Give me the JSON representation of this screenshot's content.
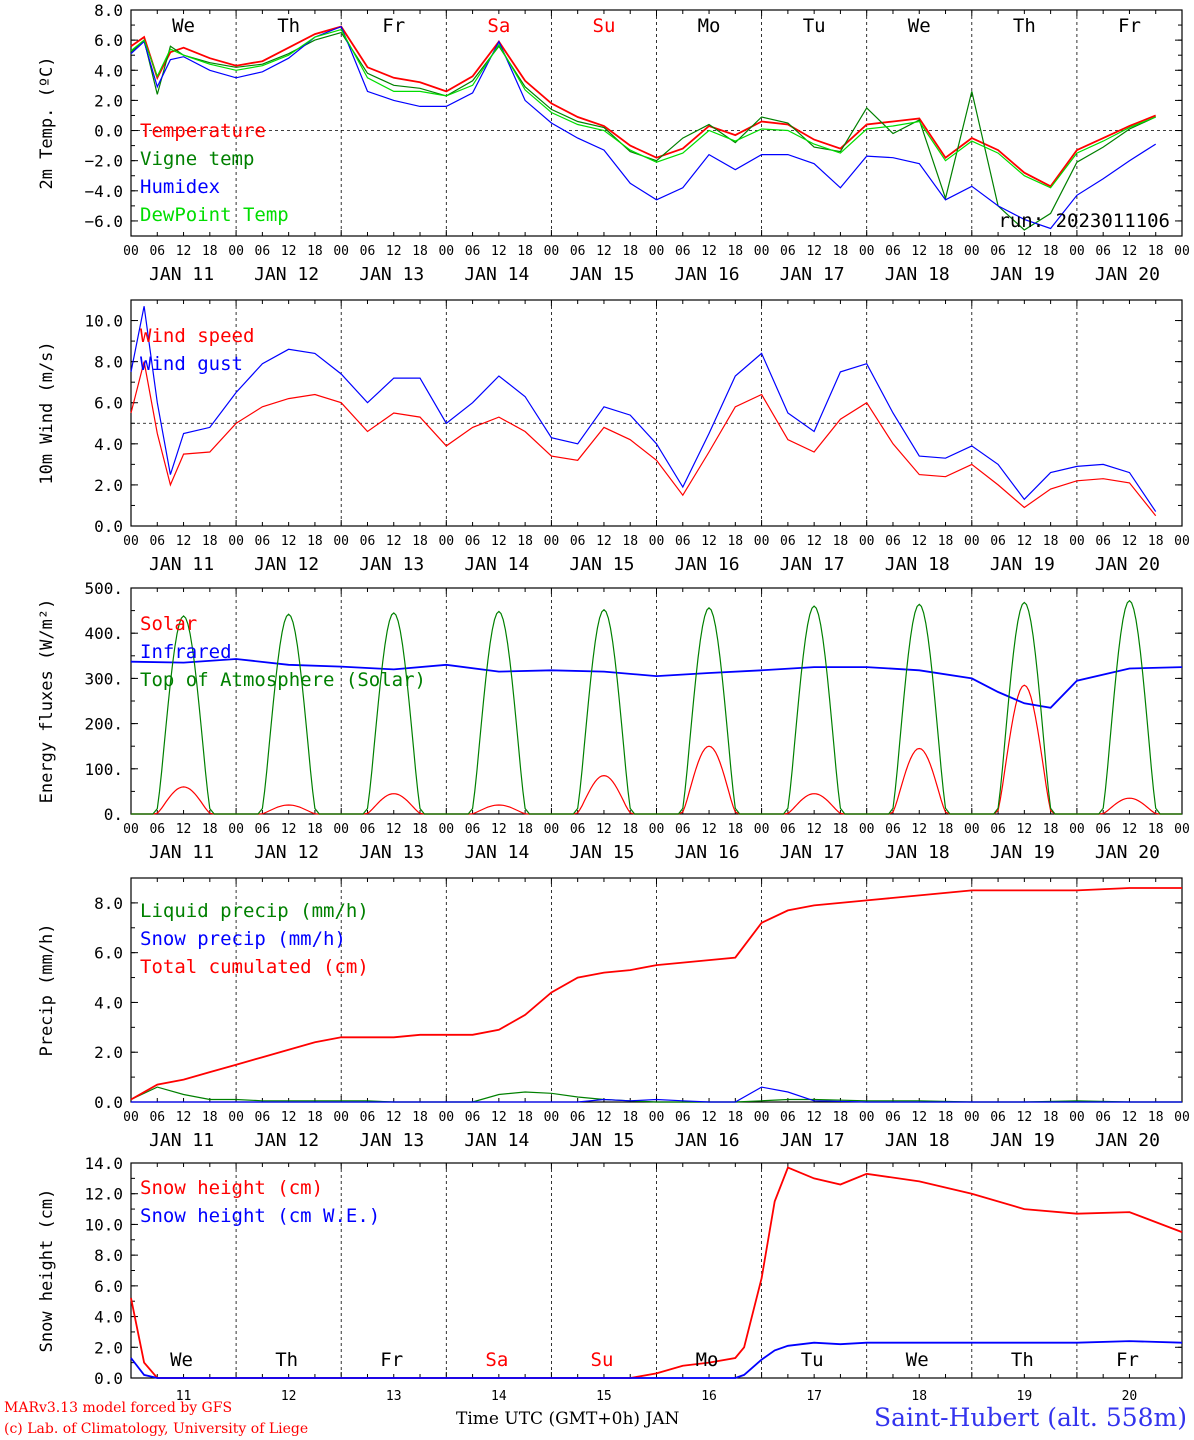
{
  "days": [
    "We",
    "Th",
    "Fr",
    "Sa",
    "Su",
    "Mo",
    "Tu",
    "We",
    "Th",
    "Fr"
  ],
  "weekend_days": [
    3,
    4
  ],
  "dates": [
    "JAN 11",
    "JAN 12",
    "JAN 13",
    "JAN 14",
    "JAN 15",
    "JAN 16",
    "JAN 17",
    "JAN 18",
    "JAN 19",
    "JAN 20"
  ],
  "hour_ticks": [
    "00",
    "06",
    "12",
    "18"
  ],
  "bottom_dates": [
    "11",
    "12",
    "13",
    "14",
    "15",
    "16",
    "17",
    "18",
    "19",
    "20"
  ],
  "footer": {
    "model": "MARv3.13 model forced by GFS",
    "credit": "(c) Lab. of Climatology, University of Liege",
    "xlabel": "Time UTC (GMT+0h) JAN",
    "station": "Saint-Hubert (alt. 558m)"
  },
  "colors": {
    "red": "#ff0000",
    "green": "#008000",
    "blue": "#0000ff",
    "lightgreen": "#00dd00",
    "axis": "#000000"
  },
  "chart_data": [
    {
      "type": "line",
      "ylabel": "2m Temp. (ºC)",
      "ylim": [
        -7.0,
        8.0
      ],
      "yticks": [
        8.0,
        6.0,
        4.0,
        2.0,
        0.0,
        -2.0,
        -4.0,
        -6.0
      ],
      "yticklabels": [
        "8.0",
        "6.0",
        "4.0",
        "2.0",
        "0.0",
        "−2.0",
        "−4.0",
        "−6.0"
      ],
      "refline": 0.0,
      "annotation": "run: 2023011106",
      "x_hours": [
        0,
        3,
        6,
        9,
        12,
        18,
        24,
        30,
        36,
        42,
        48,
        54,
        60,
        66,
        72,
        78,
        84,
        90,
        96,
        102,
        108,
        114,
        120,
        126,
        132,
        138,
        144,
        150,
        156,
        162,
        168,
        174,
        180,
        186,
        192,
        198,
        204,
        210,
        216,
        222,
        228,
        234
      ],
      "series": [
        {
          "name": "Temperature",
          "color": "red",
          "values": [
            5.6,
            6.2,
            3.5,
            5.2,
            5.5,
            4.8,
            4.3,
            4.6,
            5.5,
            6.4,
            6.9,
            4.2,
            3.5,
            3.2,
            2.6,
            3.6,
            5.9,
            3.3,
            1.8,
            0.9,
            0.3,
            -1.0,
            -1.8,
            -1.2,
            0.3,
            -0.3,
            0.6,
            0.4,
            -0.6,
            -1.2,
            0.4,
            0.6,
            0.8,
            -1.8,
            -0.5,
            -1.3,
            -2.8,
            -3.7,
            -1.3,
            -0.5,
            0.3,
            1.0
          ]
        },
        {
          "name": "Vigne temp",
          "color": "green",
          "values": [
            5.2,
            6.0,
            2.4,
            5.6,
            5.0,
            4.5,
            4.2,
            4.4,
            5.1,
            6.0,
            6.5,
            3.8,
            3.0,
            2.8,
            2.3,
            3.3,
            5.6,
            2.9,
            1.4,
            0.6,
            0.2,
            -1.4,
            -2.0,
            -0.5,
            0.4,
            -0.8,
            0.9,
            0.5,
            -1.1,
            -1.4,
            1.5,
            -0.2,
            0.7,
            -4.5,
            2.6,
            -5.0,
            -6.6,
            -5.5,
            -2.1,
            -1.1,
            0.1,
            0.9
          ]
        },
        {
          "name": "Humidex",
          "color": "blue",
          "values": [
            5.1,
            5.9,
            2.9,
            4.7,
            4.9,
            4.0,
            3.5,
            3.9,
            4.8,
            6.2,
            6.9,
            2.6,
            2.0,
            1.6,
            1.6,
            2.5,
            5.9,
            2.0,
            0.5,
            -0.5,
            -1.3,
            -3.5,
            -4.6,
            -3.8,
            -1.6,
            -2.6,
            -1.6,
            -1.6,
            -2.2,
            -3.8,
            -1.7,
            -1.8,
            -2.2,
            -4.6,
            -3.7,
            -5.0,
            -5.9,
            -6.5,
            -4.3,
            -3.2,
            -2.0,
            -0.9
          ]
        },
        {
          "name": "DewPoint Temp",
          "color": "lightgreen",
          "values": [
            5.3,
            6.0,
            3.6,
            5.4,
            5.0,
            4.4,
            4.0,
            4.3,
            5.0,
            6.2,
            6.7,
            3.5,
            2.6,
            2.6,
            2.3,
            3.0,
            5.7,
            2.7,
            1.2,
            0.4,
            0.0,
            -1.3,
            -2.1,
            -1.5,
            0.0,
            -0.7,
            0.1,
            0.0,
            -0.9,
            -1.5,
            0.1,
            0.3,
            0.6,
            -2.0,
            -0.7,
            -1.5,
            -3.0,
            -3.8,
            -1.5,
            -0.7,
            0.2,
            0.9
          ]
        }
      ]
    },
    {
      "type": "line",
      "ylabel": "10m Wind (m/s)",
      "ylim": [
        0.0,
        11.0
      ],
      "yticks": [
        10.0,
        8.0,
        6.0,
        4.0,
        2.0,
        0.0
      ],
      "yticklabels": [
        "10.0",
        "8.0",
        "6.0",
        "4.0",
        "2.0",
        "0.0"
      ],
      "refline": 5.0,
      "x_hours": [
        0,
        3,
        6,
        9,
        12,
        18,
        24,
        30,
        36,
        42,
        48,
        54,
        60,
        66,
        72,
        78,
        84,
        90,
        96,
        102,
        108,
        114,
        120,
        126,
        132,
        138,
        144,
        150,
        156,
        162,
        168,
        174,
        180,
        186,
        192,
        198,
        204,
        210,
        216,
        222,
        228,
        234
      ],
      "series": [
        {
          "name": "Wind speed",
          "color": "red",
          "values": [
            5.5,
            8.0,
            4.5,
            2.0,
            3.5,
            3.6,
            5.0,
            5.8,
            6.2,
            6.4,
            6.0,
            4.6,
            5.5,
            5.3,
            3.9,
            4.8,
            5.3,
            4.6,
            3.4,
            3.2,
            4.8,
            4.2,
            3.2,
            1.5,
            3.6,
            5.8,
            6.4,
            4.2,
            3.6,
            5.2,
            6.0,
            4.0,
            2.5,
            2.4,
            3.0,
            2.0,
            0.9,
            1.8,
            2.2,
            2.3,
            2.1,
            0.5
          ]
        },
        {
          "name": "Wind gust",
          "color": "blue",
          "values": [
            7.5,
            10.7,
            6.0,
            2.5,
            4.5,
            4.8,
            6.5,
            7.9,
            8.6,
            8.4,
            7.4,
            6.0,
            7.2,
            7.2,
            5.0,
            6.0,
            7.3,
            6.3,
            4.3,
            4.0,
            5.8,
            5.4,
            4.0,
            1.9,
            4.5,
            7.3,
            8.4,
            5.5,
            4.6,
            7.5,
            7.9,
            5.5,
            3.4,
            3.3,
            3.9,
            3.0,
            1.3,
            2.6,
            2.9,
            3.0,
            2.6,
            0.7
          ]
        }
      ]
    },
    {
      "type": "line",
      "ylabel": "Energy fluxes (W/m²)",
      "ylim": [
        0,
        500
      ],
      "yticks": [
        500,
        400,
        300,
        200,
        100,
        0
      ],
      "yticklabels": [
        "500.",
        "400.",
        "300.",
        "200.",
        "100.",
        "0."
      ],
      "x_hours": [
        0,
        12,
        24,
        36,
        48,
        60,
        72,
        84,
        96,
        108,
        120,
        132,
        144,
        156,
        168,
        180,
        192,
        198,
        204,
        210,
        216,
        228,
        240
      ],
      "series": [
        {
          "name": "Solar",
          "color": "red",
          "peak_hour": [
            12,
            36,
            60,
            84,
            108,
            132,
            156,
            180,
            204,
            228
          ],
          "peaks": [
            60,
            20,
            45,
            20,
            85,
            150,
            45,
            145,
            285,
            35
          ]
        },
        {
          "name": "Infrared",
          "color": "blue",
          "values": [
            337,
            335,
            343,
            330,
            326,
            320,
            330,
            315,
            318,
            315,
            305,
            312,
            318,
            325,
            325,
            318,
            300,
            270,
            245,
            235,
            295,
            322,
            325
          ]
        },
        {
          "name": "Top of Atmosphere (Solar)",
          "color": "green",
          "peak_hour": [
            12,
            36,
            60,
            84,
            108,
            132,
            156,
            180,
            204,
            228
          ],
          "peaks": [
            438,
            442,
            445,
            448,
            452,
            456,
            460,
            464,
            468,
            472
          ]
        }
      ]
    },
    {
      "type": "line",
      "ylabel": "Precip (mm/h)",
      "ylim": [
        0.0,
        9.0
      ],
      "yticks": [
        8.0,
        6.0,
        4.0,
        2.0,
        0.0
      ],
      "yticklabels": [
        "8.0",
        "6.0",
        "4.0",
        "2.0",
        "0.0"
      ],
      "x_hours": [
        0,
        6,
        12,
        18,
        24,
        30,
        36,
        42,
        48,
        54,
        60,
        66,
        72,
        78,
        84,
        90,
        96,
        102,
        108,
        114,
        120,
        126,
        132,
        138,
        144,
        150,
        156,
        168,
        180,
        192,
        204,
        216,
        228,
        240
      ],
      "series": [
        {
          "name": "Liquid precip (mm/h)",
          "color": "green",
          "values": [
            0.1,
            0.6,
            0.3,
            0.1,
            0.1,
            0.05,
            0.05,
            0.05,
            0.05,
            0.05,
            0.0,
            0.0,
            0.0,
            0.0,
            0.3,
            0.4,
            0.35,
            0.2,
            0.1,
            0.05,
            0.0,
            0.0,
            0.0,
            0.0,
            0.05,
            0.1,
            0.1,
            0.05,
            0.05,
            0.0,
            0.0,
            0.05,
            0.0,
            0.0
          ]
        },
        {
          "name": "Snow precip (mm/h)",
          "color": "blue",
          "values": [
            0.0,
            0.0,
            0.0,
            0.0,
            0.0,
            0.0,
            0.0,
            0.0,
            0.0,
            0.0,
            0.0,
            0.0,
            0.0,
            0.0,
            0.0,
            0.0,
            0.0,
            0.0,
            0.1,
            0.05,
            0.1,
            0.05,
            0.0,
            0.0,
            0.6,
            0.4,
            0.05,
            0.0,
            0.0,
            0.0,
            0.0,
            0.0,
            0.0,
            0.0
          ]
        },
        {
          "name": "Total cumulated (cm)",
          "color": "red",
          "values": [
            0.1,
            0.7,
            0.9,
            1.2,
            1.5,
            1.8,
            2.1,
            2.4,
            2.6,
            2.6,
            2.6,
            2.7,
            2.7,
            2.7,
            2.9,
            3.5,
            4.4,
            5.0,
            5.2,
            5.3,
            5.5,
            5.6,
            5.7,
            5.8,
            7.2,
            7.7,
            7.9,
            8.1,
            8.3,
            8.5,
            8.5,
            8.5,
            8.6,
            8.6
          ]
        }
      ]
    },
    {
      "type": "line",
      "ylabel": "Snow height (cm)",
      "ylim": [
        0.0,
        14.0
      ],
      "yticks": [
        14.0,
        12.0,
        10.0,
        8.0,
        6.0,
        4.0,
        2.0,
        0.0
      ],
      "yticklabels": [
        "14.0",
        "12.0",
        "10.0",
        "8.0",
        "6.0",
        "4.0",
        "2.0",
        "0.0"
      ],
      "x_hours": [
        0,
        3,
        6,
        24,
        48,
        96,
        114,
        120,
        126,
        132,
        138,
        140,
        144,
        147,
        150,
        156,
        162,
        168,
        180,
        192,
        204,
        216,
        228,
        240
      ],
      "series": [
        {
          "name": "Snow height (cm)",
          "color": "red",
          "values": [
            5.2,
            1.0,
            0.0,
            0.0,
            0.0,
            0.0,
            0.0,
            0.3,
            0.8,
            1.0,
            1.3,
            2.0,
            6.5,
            11.5,
            13.7,
            13.0,
            12.6,
            13.3,
            12.8,
            12.0,
            11.0,
            10.7,
            10.8,
            9.5
          ]
        },
        {
          "name": "Snow height (cm W.E.)",
          "color": "blue",
          "values": [
            1.3,
            0.2,
            0.0,
            0.0,
            0.0,
            0.0,
            0.0,
            0.0,
            0.0,
            0.0,
            0.0,
            0.2,
            1.2,
            1.8,
            2.1,
            2.3,
            2.2,
            2.3,
            2.3,
            2.3,
            2.3,
            2.3,
            2.4,
            2.3
          ]
        }
      ]
    }
  ]
}
